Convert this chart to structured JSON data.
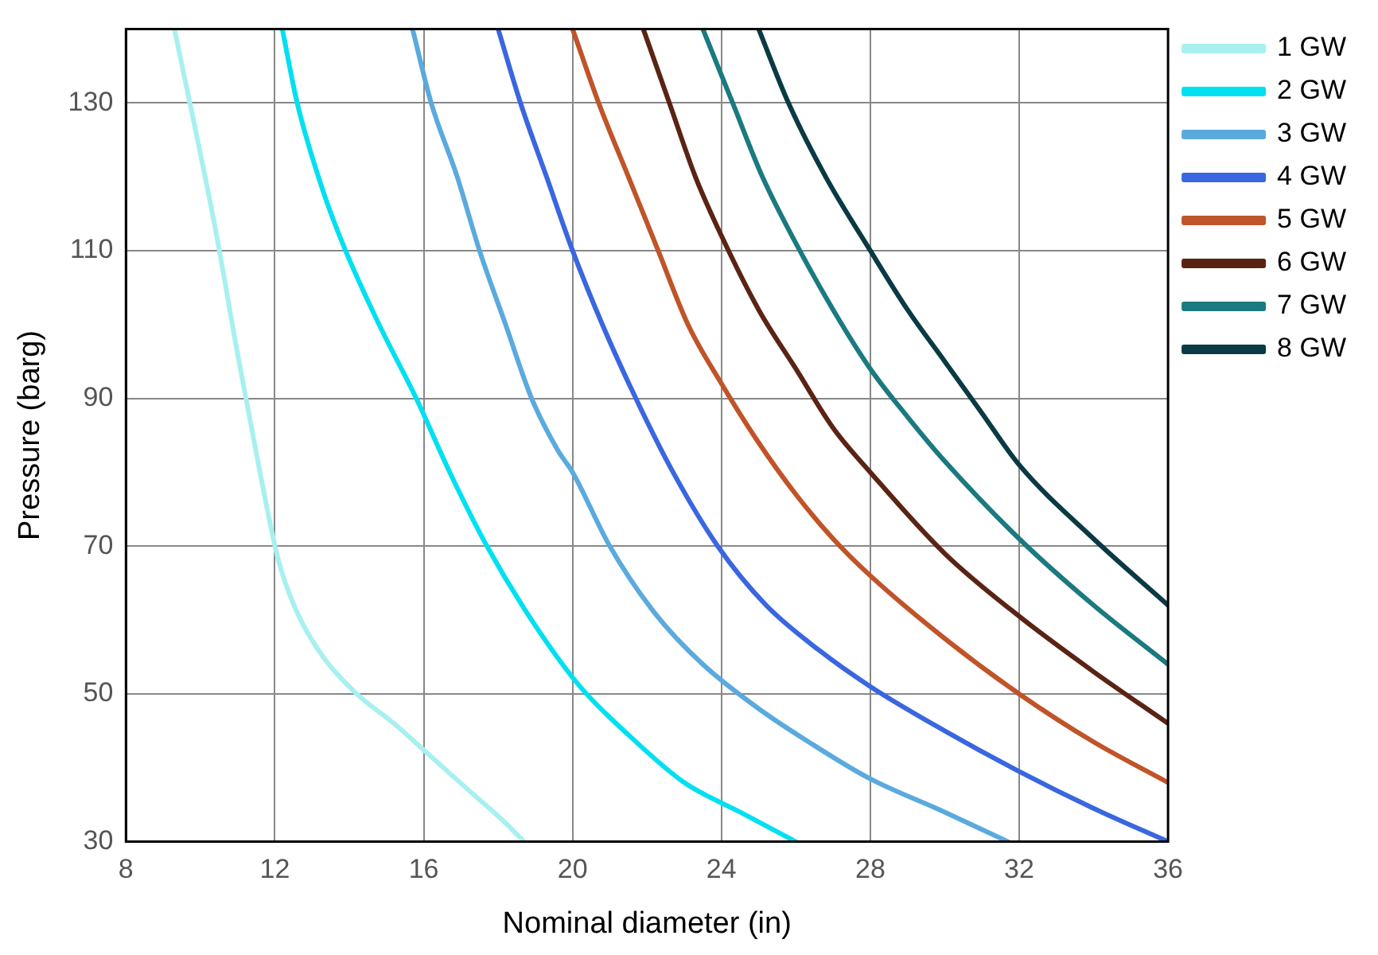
{
  "chart_data": {
    "type": "line",
    "xlabel": "Nominal diameter (in)",
    "ylabel": "Pressure (barg)",
    "xlim": [
      8,
      36
    ],
    "xticks": [
      8,
      12,
      16,
      20,
      24,
      28,
      32,
      36
    ],
    "ylim": [
      30,
      140
    ],
    "yticks": [
      30,
      50,
      70,
      90,
      110,
      130
    ],
    "grid": true,
    "legend": "right",
    "marker": "none",
    "line_style": "solid",
    "series": [
      {
        "name": "1 GW",
        "color": "#a8f0f0",
        "x": [
          9.3,
          9.8,
          10.4,
          11,
          11.6,
          12.1,
          12.6,
          13.3,
          14.2,
          15.2,
          16.2,
          17.2,
          18.1,
          18.7
        ],
        "values": [
          140,
          128,
          113,
          96,
          80,
          68,
          61,
          55,
          50,
          46,
          41.5,
          37,
          33,
          30
        ]
      },
      {
        "name": "2 GW",
        "color": "#00e0f0",
        "x": [
          12.2,
          12.6,
          13.3,
          13.9,
          14.8,
          15.8,
          16.7,
          17.7,
          18.9,
          20.2,
          21.6,
          23,
          24.5,
          26
        ],
        "values": [
          140,
          130,
          118,
          110,
          100,
          90,
          80,
          70,
          60,
          51,
          44,
          38,
          34,
          30
        ]
      },
      {
        "name": "3 GW",
        "color": "#5aaade",
        "x": [
          15.7,
          16.2,
          16.9,
          17.5,
          18.2,
          18.9,
          19.6,
          20,
          21,
          22.2,
          23.5,
          25,
          26.5,
          28,
          30,
          31.7
        ],
        "values": [
          140,
          130,
          120,
          110,
          100,
          90,
          83,
          80,
          70,
          61,
          54,
          48,
          43,
          38.5,
          34,
          30
        ]
      },
      {
        "name": "4 GW",
        "color": "#3a66e0",
        "x": [
          18,
          18.6,
          19.3,
          20,
          20.8,
          21.7,
          22.7,
          23.9,
          25.2,
          26.6,
          28,
          30,
          32,
          34,
          36
        ],
        "values": [
          140,
          130,
          120,
          110,
          100,
          90,
          80,
          70,
          62,
          56,
          51,
          45,
          39.5,
          34.5,
          30
        ]
      },
      {
        "name": "5 GW",
        "color": "#c05428",
        "x": [
          20,
          20.7,
          21.5,
          22.3,
          23.1,
          24,
          25,
          26,
          27,
          28,
          30,
          32,
          34,
          36
        ],
        "values": [
          140,
          130,
          120,
          110,
          100,
          92,
          84,
          77,
          71,
          66,
          57.5,
          50,
          43.5,
          38
        ]
      },
      {
        "name": "6 GW",
        "color": "#5a2414",
        "x": [
          21.9,
          22.6,
          23.3,
          24,
          25,
          26,
          27,
          28,
          30,
          32,
          34,
          36
        ],
        "values": [
          140,
          130,
          120,
          112,
          102,
          94,
          86,
          80,
          69,
          60.5,
          53,
          46
        ]
      },
      {
        "name": "7 GW",
        "color": "#1a7a80",
        "x": [
          23.5,
          24.3,
          25.1,
          26,
          27,
          28,
          29,
          30,
          32,
          34,
          36
        ],
        "values": [
          140,
          130,
          120,
          111,
          102,
          94,
          87.5,
          81.5,
          71,
          62,
          54
        ]
      },
      {
        "name": "8 GW",
        "color": "#0a3a44",
        "x": [
          25,
          25.8,
          26.8,
          28,
          29,
          30,
          31,
          32,
          34,
          36
        ],
        "values": [
          140,
          130,
          120,
          110,
          102,
          95,
          88,
          81,
          71,
          62
        ]
      }
    ]
  }
}
